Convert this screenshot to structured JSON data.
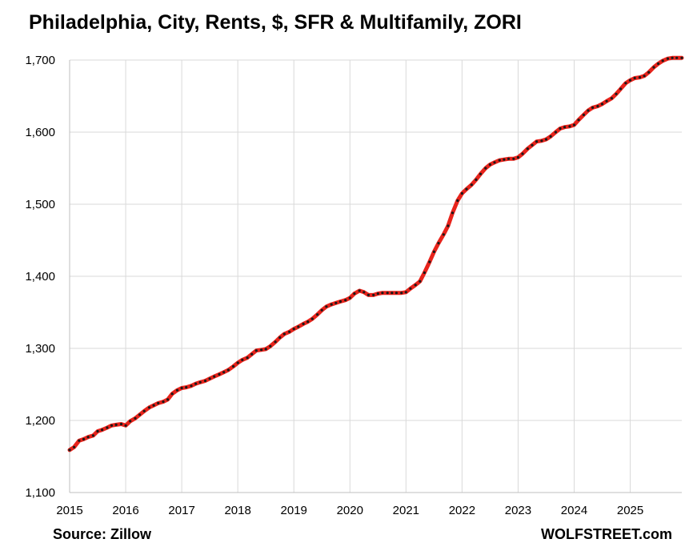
{
  "chart_data": {
    "type": "line",
    "title": "Philadelphia, City, Rents, $, SFR & Multifamily, ZORI",
    "xlabel": "",
    "ylabel": "",
    "ylim": [
      1100,
      1700
    ],
    "xlim": [
      2015,
      2025.92
    ],
    "yticks": [
      1100,
      1200,
      1300,
      1400,
      1500,
      1600,
      1700
    ],
    "ytick_labels": [
      "1,100",
      "1,200",
      "1,300",
      "1,400",
      "1,500",
      "1,600",
      "1,700"
    ],
    "xticks": [
      2015,
      2016,
      2017,
      2018,
      2019,
      2020,
      2021,
      2022,
      2023,
      2024,
      2025
    ],
    "xtick_labels": [
      "2015",
      "2016",
      "2017",
      "2018",
      "2019",
      "2020",
      "2021",
      "2022",
      "2023",
      "2024",
      "2025"
    ],
    "grid": true,
    "legend": "none",
    "series": [
      {
        "color": "#e8231b",
        "marker_color": "#1a1a1a",
        "x": [
          2015.0,
          2015.08,
          2015.17,
          2015.25,
          2015.33,
          2015.42,
          2015.5,
          2015.58,
          2015.67,
          2015.75,
          2015.83,
          2015.92,
          2016.0,
          2016.08,
          2016.17,
          2016.25,
          2016.33,
          2016.42,
          2016.5,
          2016.58,
          2016.67,
          2016.75,
          2016.83,
          2016.92,
          2017.0,
          2017.08,
          2017.17,
          2017.25,
          2017.33,
          2017.42,
          2017.5,
          2017.58,
          2017.67,
          2017.75,
          2017.83,
          2017.92,
          2018.0,
          2018.08,
          2018.17,
          2018.25,
          2018.33,
          2018.42,
          2018.5,
          2018.58,
          2018.67,
          2018.75,
          2018.83,
          2018.92,
          2019.0,
          2019.08,
          2019.17,
          2019.25,
          2019.33,
          2019.42,
          2019.5,
          2019.58,
          2019.67,
          2019.75,
          2019.83,
          2019.92,
          2020.0,
          2020.08,
          2020.17,
          2020.25,
          2020.33,
          2020.42,
          2020.5,
          2020.58,
          2020.67,
          2020.75,
          2020.83,
          2020.92,
          2021.0,
          2021.08,
          2021.17,
          2021.25,
          2021.33,
          2021.42,
          2021.5,
          2021.58,
          2021.67,
          2021.75,
          2021.83,
          2021.92,
          2022.0,
          2022.08,
          2022.17,
          2022.25,
          2022.33,
          2022.42,
          2022.5,
          2022.58,
          2022.67,
          2022.75,
          2022.83,
          2022.92,
          2023.0,
          2023.08,
          2023.17,
          2023.25,
          2023.33,
          2023.42,
          2023.5,
          2023.58,
          2023.67,
          2023.75,
          2023.83,
          2023.92,
          2024.0,
          2024.08,
          2024.17,
          2024.25,
          2024.33,
          2024.42,
          2024.5,
          2024.58,
          2024.67,
          2024.75,
          2024.83,
          2024.92,
          2025.0,
          2025.08,
          2025.17,
          2025.25,
          2025.33,
          2025.42,
          2025.5,
          2025.58,
          2025.67,
          2025.75,
          2025.83,
          2025.92
        ],
        "values": [
          1159,
          1163,
          1172,
          1174,
          1177,
          1179,
          1185,
          1187,
          1190,
          1193,
          1194,
          1195,
          1193,
          1199,
          1203,
          1208,
          1213,
          1218,
          1221,
          1224,
          1226,
          1229,
          1237,
          1242,
          1245,
          1246,
          1248,
          1251,
          1253,
          1255,
          1258,
          1261,
          1264,
          1267,
          1270,
          1275,
          1280,
          1284,
          1287,
          1292,
          1297,
          1298,
          1299,
          1303,
          1309,
          1315,
          1320,
          1323,
          1327,
          1330,
          1334,
          1337,
          1341,
          1347,
          1353,
          1358,
          1361,
          1363,
          1365,
          1367,
          1370,
          1376,
          1380,
          1378,
          1374,
          1374,
          1376,
          1377,
          1377,
          1377,
          1377,
          1377,
          1378,
          1383,
          1388,
          1393,
          1405,
          1420,
          1434,
          1446,
          1458,
          1470,
          1488,
          1505,
          1515,
          1521,
          1527,
          1534,
          1542,
          1550,
          1555,
          1558,
          1561,
          1562,
          1563,
          1563,
          1565,
          1570,
          1577,
          1582,
          1587,
          1588,
          1590,
          1594,
          1600,
          1605,
          1607,
          1608,
          1610,
          1617,
          1624,
          1630,
          1634,
          1636,
          1639,
          1643,
          1647,
          1653,
          1660,
          1668,
          1672,
          1675,
          1676,
          1678,
          1683,
          1690,
          1695,
          1699,
          1702,
          1703,
          1703,
          1703
        ]
      }
    ]
  },
  "footer": {
    "source": "Source: Zillow",
    "site": "WOLFSTREET.com"
  },
  "colors": {
    "line": "#e8231b",
    "markers": "#1a1a1a",
    "grid": "#d9d9d9",
    "axis": "#bfbfbf"
  }
}
